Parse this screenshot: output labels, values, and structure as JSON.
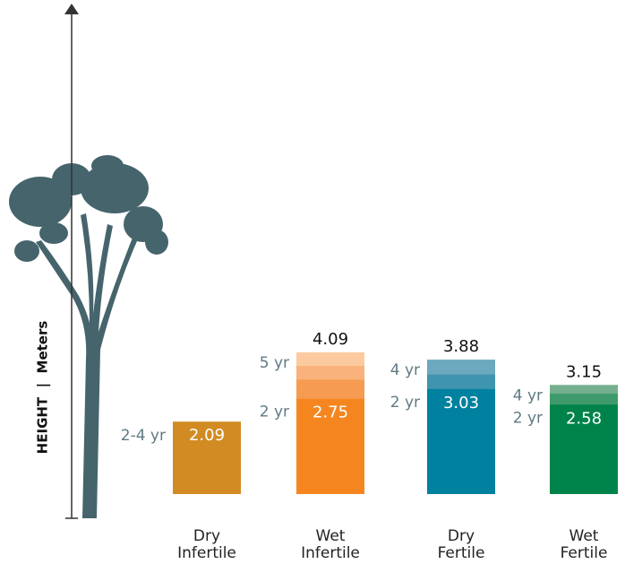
{
  "chart_data": {
    "type": "bar",
    "y_label": "HEIGHT  |  Meters",
    "ylim": [
      0,
      14
    ],
    "categories": [
      [
        "Dry",
        "Infertile"
      ],
      [
        "Wet",
        "Infertile"
      ],
      [
        "Dry",
        "Fertile"
      ],
      [
        "Wet",
        "Fertile"
      ]
    ],
    "bars": [
      {
        "segments": [
          {
            "age": "2-4 yr",
            "value": 2.09,
            "color": "#d18b22"
          }
        ]
      },
      {
        "segments": [
          {
            "age": "2 yr",
            "value": 2.75,
            "color": "#f5861f"
          },
          {
            "value": 3.3,
            "color": "#f69c52"
          },
          {
            "value": 3.7,
            "color": "#f9b27b"
          },
          {
            "age": "5 yr",
            "value": 4.09,
            "color": "#fcca9e"
          }
        ]
      },
      {
        "segments": [
          {
            "age": "2 yr",
            "value": 3.03,
            "color": "#00819f"
          },
          {
            "value": 3.45,
            "color": "#3f94ae"
          },
          {
            "age": "4 yr",
            "value": 3.88,
            "color": "#6ca9be"
          }
        ]
      },
      {
        "segments": [
          {
            "age": "2 yr",
            "value": 2.58,
            "color": "#00834a"
          },
          {
            "value": 2.9,
            "color": "#3f9a6b"
          },
          {
            "age": "4 yr",
            "value": 3.15,
            "color": "#74b08f"
          }
        ]
      }
    ]
  }
}
